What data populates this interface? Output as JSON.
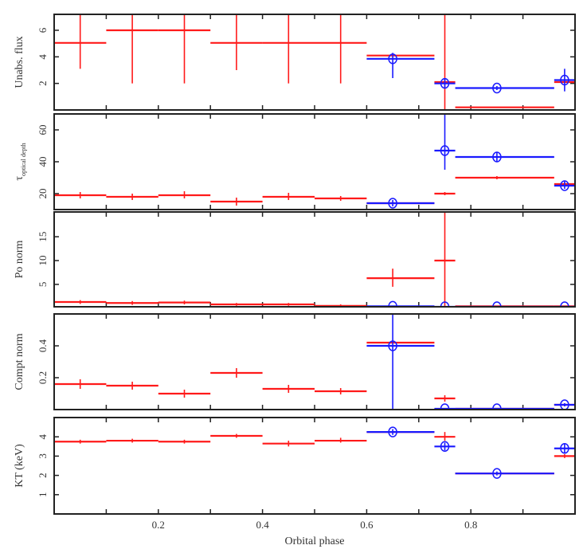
{
  "chart_data": {
    "type": "scatter",
    "subtype": "multi-panel error-bar plot",
    "xlabel": "Orbital phase",
    "xlim": [
      0,
      1.0
    ],
    "xticks": [
      0.2,
      0.4,
      0.6,
      0.8
    ],
    "xtick_labels": [
      "0.2",
      "0.4",
      "0.6",
      "0.8"
    ],
    "series_colors": {
      "red": "#ff1a1a",
      "blue": "#1a1aff"
    },
    "panels": [
      {
        "ylabel": "Unabs. flux",
        "ylim": [
          0,
          7.2
        ],
        "yticks": [
          2,
          4,
          6
        ],
        "ytick_labels": [
          "2",
          "4",
          "6"
        ],
        "series": [
          {
            "name": "red",
            "points": [
              [
                0.0,
                0.1,
                0.05,
                5.05,
                3.1,
                7.2
              ],
              [
                0.1,
                0.2,
                0.15,
                6.0,
                2.0,
                7.2
              ],
              [
                0.2,
                0.3,
                0.25,
                6.0,
                2.0,
                7.2
              ],
              [
                0.3,
                0.4,
                0.35,
                5.05,
                3.0,
                7.2
              ],
              [
                0.4,
                0.5,
                0.45,
                5.05,
                2.0,
                7.2
              ],
              [
                0.5,
                0.6,
                0.55,
                5.05,
                2.0,
                7.2
              ],
              [
                0.6,
                0.73,
                0.65,
                4.1,
                4.1,
                4.1
              ],
              [
                0.73,
                0.77,
                0.75,
                2.1,
                0.0,
                7.2
              ],
              [
                0.77,
                0.96,
                0.85,
                0.2,
                0.2,
                0.2
              ],
              [
                0.96,
                1.0,
                0.98,
                2.1,
                2.1,
                2.1
              ]
            ]
          },
          {
            "name": "blue",
            "points": [
              [
                0.6,
                0.73,
                0.65,
                3.85,
                2.4,
                4.3
              ],
              [
                0.73,
                0.77,
                0.75,
                2.0,
                1.6,
                2.4
              ],
              [
                0.77,
                0.96,
                0.85,
                1.65,
                1.5,
                1.8
              ],
              [
                0.96,
                1.0,
                0.98,
                2.25,
                1.4,
                3.1
              ]
            ]
          }
        ]
      },
      {
        "ylabel": "τ",
        "ylabel_sub": "optical depth",
        "ylim": [
          10,
          70
        ],
        "yticks": [
          20,
          40,
          60
        ],
        "ytick_labels": [
          "20",
          "40",
          "60"
        ],
        "series": [
          {
            "name": "red",
            "points": [
              [
                0.0,
                0.1,
                0.05,
                19,
                17,
                21
              ],
              [
                0.1,
                0.2,
                0.15,
                18,
                16,
                20
              ],
              [
                0.2,
                0.3,
                0.25,
                19,
                17,
                21.5
              ],
              [
                0.3,
                0.4,
                0.35,
                15,
                12.5,
                17.5
              ],
              [
                0.4,
                0.5,
                0.45,
                18,
                16,
                20.5
              ],
              [
                0.5,
                0.6,
                0.55,
                17,
                15.5,
                18.5
              ],
              [
                0.6,
                0.73,
                0.65,
                14,
                14,
                14
              ],
              [
                0.73,
                0.77,
                0.75,
                20,
                19,
                21
              ],
              [
                0.77,
                0.96,
                0.85,
                30,
                29,
                31
              ],
              [
                0.96,
                1.0,
                0.98,
                26,
                25,
                27
              ]
            ]
          },
          {
            "name": "blue",
            "points": [
              [
                0.6,
                0.73,
                0.65,
                14,
                12,
                16
              ],
              [
                0.73,
                0.77,
                0.75,
                47,
                35,
                70
              ],
              [
                0.77,
                0.96,
                0.85,
                43,
                40,
                46
              ],
              [
                0.96,
                1.0,
                0.98,
                25,
                23,
                28
              ]
            ]
          }
        ]
      },
      {
        "ylabel": "Po norm",
        "ylim": [
          0.3,
          20.2
        ],
        "yticks": [
          5,
          10,
          15
        ],
        "ytick_labels": [
          "5",
          "10",
          "15"
        ],
        "series": [
          {
            "name": "red",
            "points": [
              [
                0.0,
                0.1,
                0.05,
                1.3,
                0.9,
                1.7
              ],
              [
                0.1,
                0.2,
                0.15,
                1.1,
                0.7,
                1.5
              ],
              [
                0.2,
                0.3,
                0.25,
                1.2,
                0.8,
                1.6
              ],
              [
                0.3,
                0.4,
                0.35,
                0.8,
                0.5,
                1.1
              ],
              [
                0.4,
                0.5,
                0.45,
                0.8,
                0.5,
                1.1
              ],
              [
                0.5,
                0.6,
                0.55,
                0.5,
                0.3,
                0.8
              ],
              [
                0.6,
                0.73,
                0.65,
                6.3,
                4.5,
                8.3
              ],
              [
                0.73,
                0.77,
                0.75,
                10,
                0.3,
                20.2
              ],
              [
                0.77,
                0.96,
                0.85,
                0.4,
                0.3,
                0.5
              ],
              [
                0.96,
                1.0,
                0.98,
                0.4,
                0.3,
                0.5
              ]
            ]
          },
          {
            "name": "blue",
            "points": [
              [
                0.6,
                0.73,
                0.65,
                0.4,
                0.3,
                0.5
              ],
              [
                0.73,
                0.77,
                0.75,
                0.3,
                0.3,
                0.4
              ],
              [
                0.77,
                0.96,
                0.85,
                0.3,
                0.3,
                0.4
              ],
              [
                0.96,
                1.0,
                0.98,
                0.3,
                0.3,
                0.4
              ]
            ]
          }
        ]
      },
      {
        "ylabel": "Compt norm",
        "ylim": [
          0,
          0.6
        ],
        "yticks": [
          0.2,
          0.4
        ],
        "ytick_labels": [
          "0.2",
          "0.4"
        ],
        "series": [
          {
            "name": "red",
            "points": [
              [
                0.0,
                0.1,
                0.05,
                0.16,
                0.13,
                0.19
              ],
              [
                0.1,
                0.2,
                0.15,
                0.15,
                0.125,
                0.175
              ],
              [
                0.2,
                0.3,
                0.25,
                0.1,
                0.075,
                0.125
              ],
              [
                0.3,
                0.4,
                0.35,
                0.23,
                0.2,
                0.26
              ],
              [
                0.4,
                0.5,
                0.45,
                0.13,
                0.105,
                0.155
              ],
              [
                0.5,
                0.6,
                0.55,
                0.115,
                0.095,
                0.135
              ],
              [
                0.6,
                0.73,
                0.65,
                0.42,
                0.42,
                0.42
              ],
              [
                0.73,
                0.77,
                0.75,
                0.07,
                0.05,
                0.09
              ],
              [
                0.77,
                0.96,
                0.85,
                0.005,
                0.0,
                0.01
              ],
              [
                0.96,
                1.0,
                0.98,
                0.03,
                0.02,
                0.04
              ]
            ]
          },
          {
            "name": "blue",
            "points": [
              [
                0.6,
                0.73,
                0.65,
                0.4,
                0.0,
                0.6
              ],
              [
                0.73,
                0.77,
                0.75,
                0.005,
                0.0,
                0.01
              ],
              [
                0.77,
                0.96,
                0.85,
                0.005,
                0.0,
                0.01
              ],
              [
                0.96,
                1.0,
                0.98,
                0.03,
                0.02,
                0.04
              ]
            ]
          }
        ]
      },
      {
        "ylabel": "KT (keV)",
        "ylim": [
          0,
          5
        ],
        "yticks": [
          1,
          2,
          3,
          4
        ],
        "ytick_labels": [
          "1",
          "2",
          "3",
          "4"
        ],
        "series": [
          {
            "name": "red",
            "points": [
              [
                0.0,
                0.1,
                0.05,
                3.75,
                3.65,
                3.85
              ],
              [
                0.1,
                0.2,
                0.15,
                3.8,
                3.7,
                3.9
              ],
              [
                0.2,
                0.3,
                0.25,
                3.75,
                3.65,
                3.85
              ],
              [
                0.3,
                0.4,
                0.35,
                4.05,
                3.95,
                4.15
              ],
              [
                0.4,
                0.5,
                0.45,
                3.65,
                3.5,
                3.8
              ],
              [
                0.5,
                0.6,
                0.55,
                3.8,
                3.7,
                3.95
              ],
              [
                0.6,
                0.73,
                0.65,
                4.25,
                4.25,
                4.25
              ],
              [
                0.73,
                0.77,
                0.75,
                4.0,
                3.8,
                4.25
              ],
              [
                0.77,
                0.96,
                0.85,
                2.1,
                2.1,
                2.1
              ],
              [
                0.96,
                1.0,
                0.98,
                3.0,
                2.9,
                3.1
              ]
            ]
          },
          {
            "name": "blue",
            "points": [
              [
                0.6,
                0.73,
                0.65,
                4.25,
                4.1,
                4.4
              ],
              [
                0.73,
                0.77,
                0.75,
                3.5,
                3.3,
                3.7
              ],
              [
                0.77,
                0.96,
                0.85,
                2.1,
                2.0,
                2.2
              ],
              [
                0.96,
                1.0,
                0.98,
                3.4,
                3.15,
                3.65
              ]
            ]
          }
        ]
      }
    ]
  }
}
